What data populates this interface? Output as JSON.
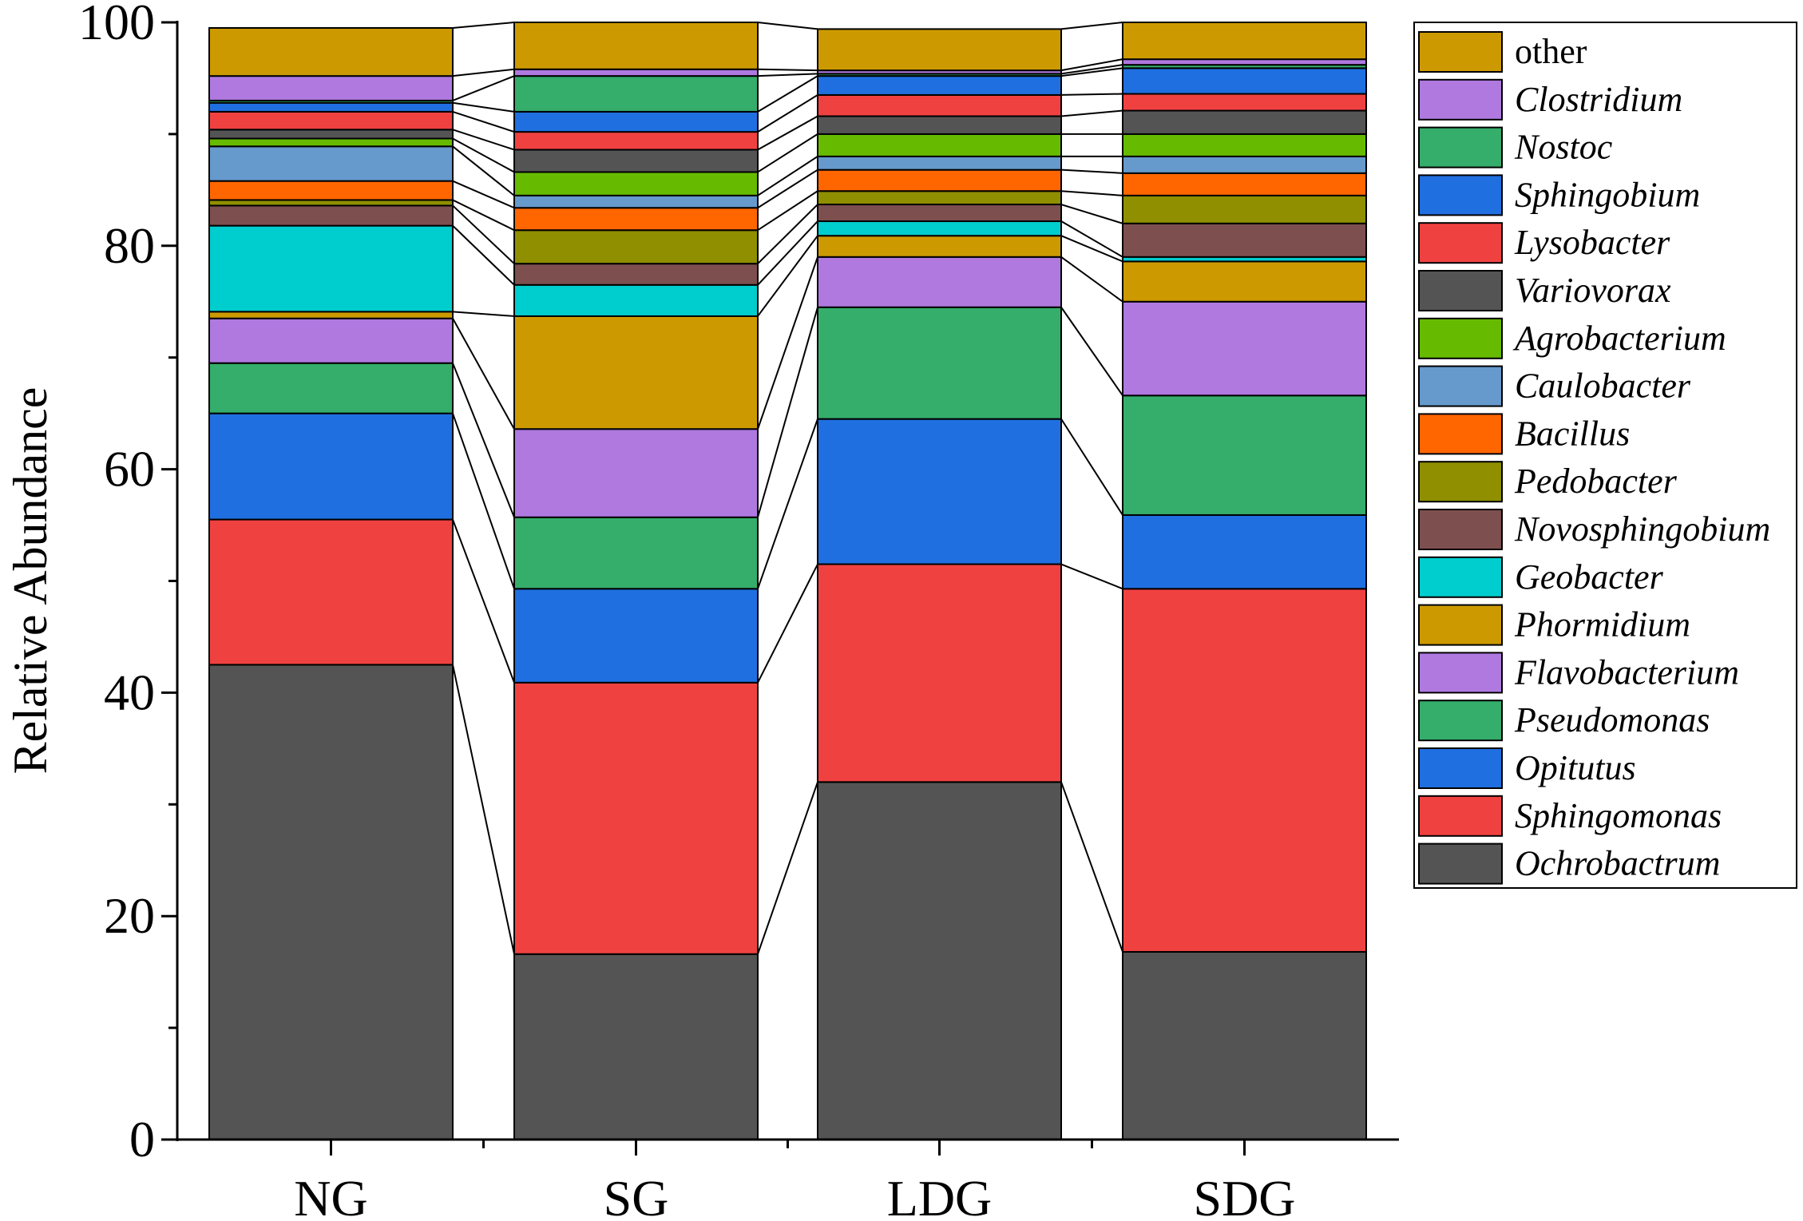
{
  "chart_data": {
    "type": "stacked-bar",
    "title": "",
    "xlabel": "",
    "ylabel": "Relative Abundance",
    "ylim": [
      0,
      100
    ],
    "yticks": [
      0,
      20,
      40,
      60,
      80,
      100
    ],
    "categories": [
      "NG",
      "SG",
      "LDG",
      "SDG"
    ],
    "legend_position": "right",
    "series": [
      {
        "name": "Ochrobactrum",
        "italic": true,
        "color": "#545454",
        "values": [
          42.5,
          16.6,
          32.0,
          16.8
        ]
      },
      {
        "name": "Sphingomonas",
        "italic": true,
        "color": "#f04141",
        "values": [
          13.0,
          24.3,
          19.5,
          32.5
        ]
      },
      {
        "name": "Opitutus",
        "italic": true,
        "color": "#1f6fe0",
        "values": [
          9.5,
          8.4,
          13.0,
          6.6
        ]
      },
      {
        "name": "Pseudomonas",
        "italic": true,
        "color": "#35ad6b",
        "values": [
          4.5,
          6.4,
          10.0,
          10.7
        ]
      },
      {
        "name": "Flavobacterium",
        "italic": true,
        "color": "#af79e0",
        "values": [
          4.0,
          7.9,
          4.5,
          8.4
        ]
      },
      {
        "name": "Phormidium",
        "italic": true,
        "color": "#cc9a00",
        "values": [
          0.6,
          10.1,
          1.9,
          3.6
        ]
      },
      {
        "name": "Geobacter",
        "italic": true,
        "color": "#00cdcd",
        "values": [
          7.7,
          2.8,
          1.3,
          0.4
        ]
      },
      {
        "name": "Novosphingobium",
        "italic": true,
        "color": "#7e4f4f",
        "values": [
          1.8,
          1.9,
          1.5,
          3.0
        ]
      },
      {
        "name": "Pedobacter",
        "italic": true,
        "color": "#8f8f00",
        "values": [
          0.5,
          3.0,
          1.2,
          2.5
        ]
      },
      {
        "name": "Bacillus",
        "italic": true,
        "color": "#ff6600",
        "values": [
          1.7,
          2.0,
          1.9,
          2.0
        ]
      },
      {
        "name": "Caulobacter",
        "italic": true,
        "color": "#6699cc",
        "values": [
          3.1,
          1.1,
          1.2,
          1.5
        ]
      },
      {
        "name": "Agrobacterium",
        "italic": true,
        "color": "#66bb00",
        "values": [
          0.7,
          2.1,
          2.0,
          2.0
        ]
      },
      {
        "name": "Variovorax",
        "italic": true,
        "color": "#545454",
        "values": [
          0.8,
          2.0,
          1.6,
          2.1
        ]
      },
      {
        "name": "Lysobacter",
        "italic": true,
        "color": "#f04141",
        "values": [
          1.6,
          1.6,
          1.9,
          1.5
        ]
      },
      {
        "name": "Sphingobium",
        "italic": true,
        "color": "#1f6fe0",
        "values": [
          0.8,
          1.8,
          1.7,
          2.3
        ]
      },
      {
        "name": "Nostoc",
        "italic": true,
        "color": "#35ad6b",
        "values": [
          0.2,
          3.2,
          0.2,
          0.3
        ]
      },
      {
        "name": "Clostridium",
        "italic": true,
        "color": "#af79e0",
        "values": [
          2.2,
          0.6,
          0.3,
          0.5
        ]
      },
      {
        "name": "other",
        "italic": false,
        "color": "#cc9a00",
        "values": [
          4.3,
          4.2,
          3.7,
          3.3
        ]
      }
    ]
  }
}
